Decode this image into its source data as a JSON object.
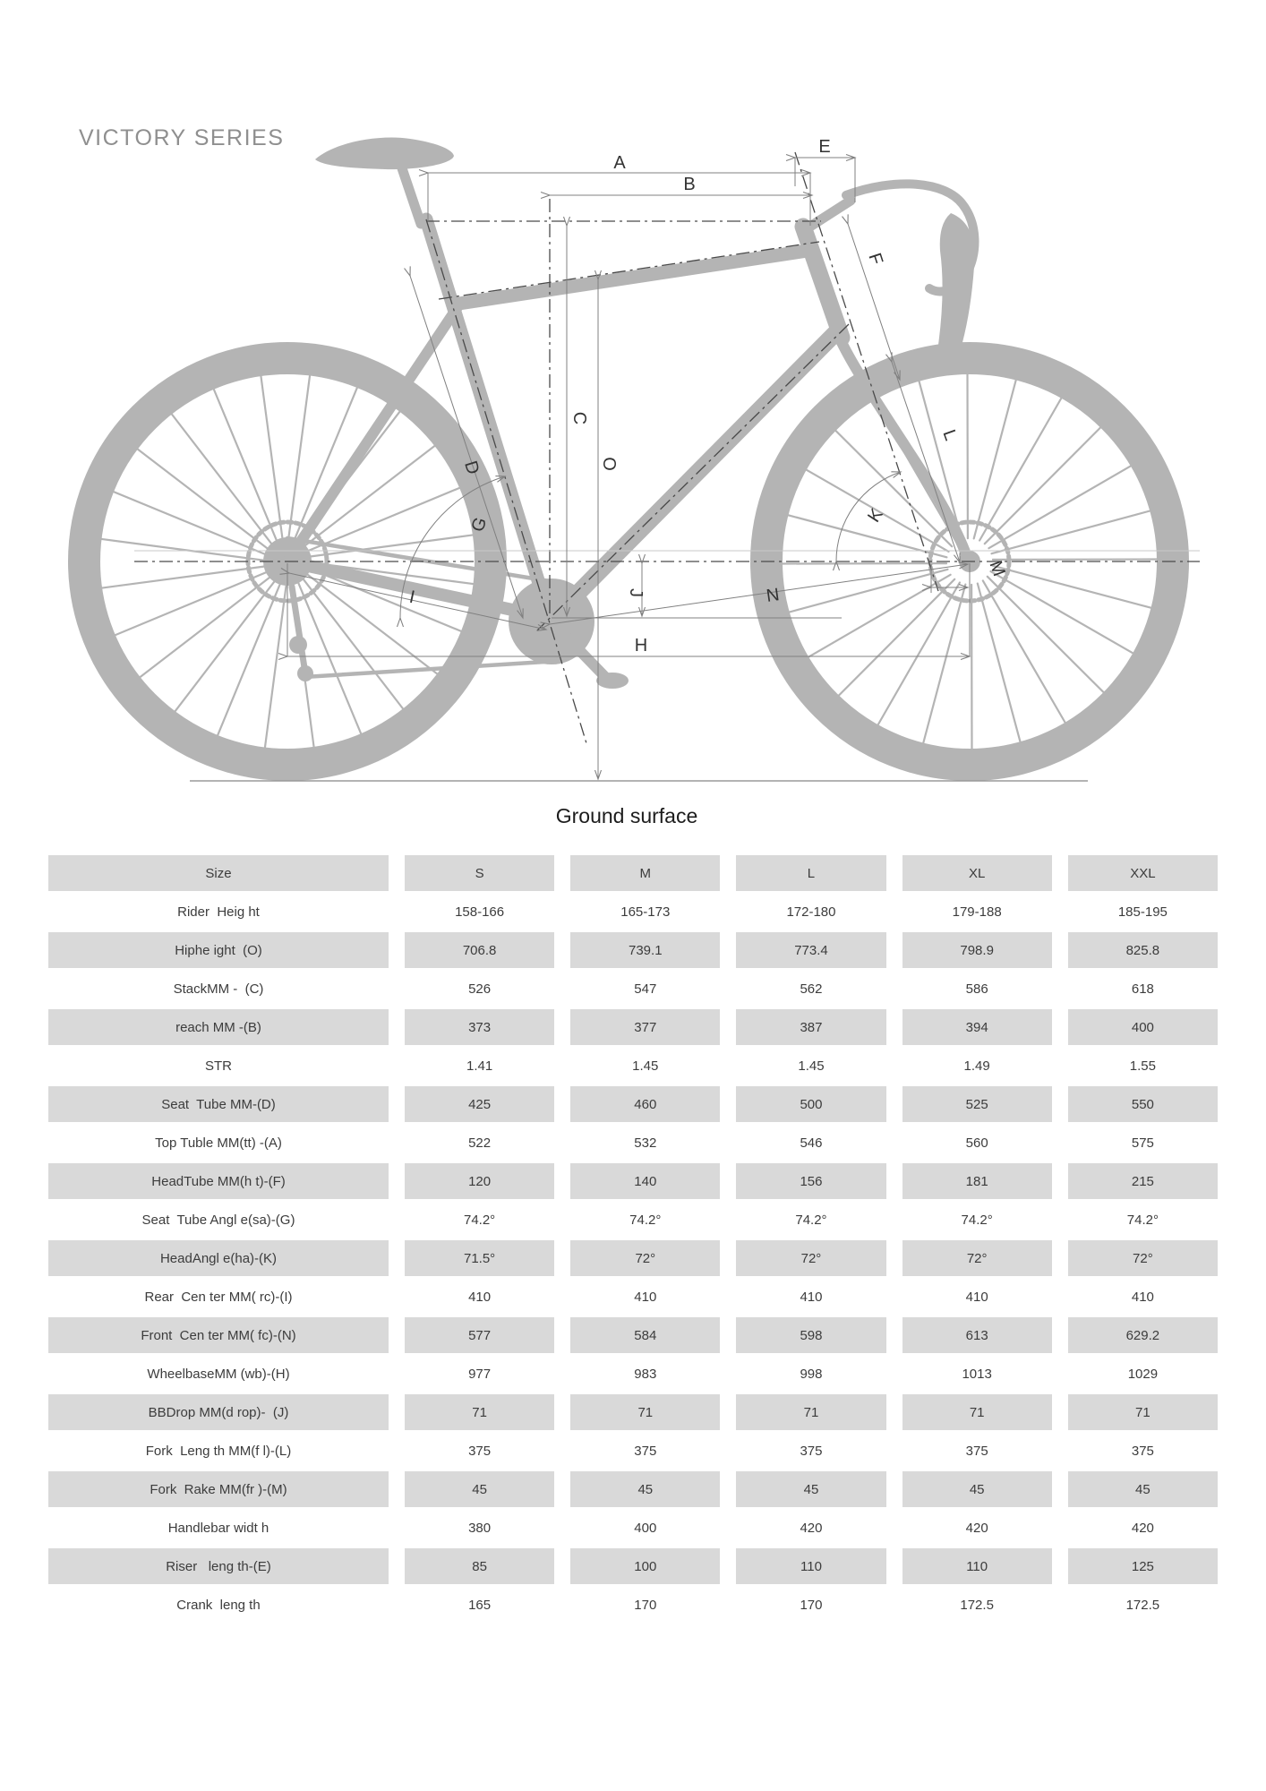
{
  "title": "VICTORY SERIES",
  "diagram": {
    "ground_label": "Ground surface",
    "letters": [
      "A",
      "B",
      "C",
      "D",
      "E",
      "F",
      "G",
      "H",
      "I",
      "J",
      "K",
      "L",
      "M",
      "N",
      "O"
    ]
  },
  "colors": {
    "bike_silhouette": "#b4b4b4",
    "table_row_gray": "#d9d9d9",
    "dimension_line": "#808080",
    "text": "#3c3c3c"
  },
  "table": {
    "columns": [
      "Size",
      "S",
      "M",
      "L",
      "XL",
      "XXL"
    ],
    "rows": [
      {
        "label": "Rider  Heig ht",
        "values": [
          "158-166",
          "165-173",
          "172-180",
          "179-188",
          "185-195"
        ]
      },
      {
        "label": "Hiphe ight  (O)",
        "values": [
          "706.8",
          "739.1",
          "773.4",
          "798.9",
          "825.8"
        ]
      },
      {
        "label": "StackMM -  (C)",
        "values": [
          "526",
          "547",
          "562",
          "586",
          "618"
        ]
      },
      {
        "label": "reach MM -(B)",
        "values": [
          "373",
          "377",
          "387",
          "394",
          "400"
        ]
      },
      {
        "label": "STR",
        "values": [
          "1.41",
          "1.45",
          "1.45",
          "1.49",
          "1.55"
        ]
      },
      {
        "label": "Seat  Tube MM-(D)",
        "values": [
          "425",
          "460",
          "500",
          "525",
          "550"
        ]
      },
      {
        "label": "Top Tuble MM(tt) -(A)",
        "values": [
          "522",
          "532",
          "546",
          "560",
          "575"
        ]
      },
      {
        "label": "HeadTube MM(h t)-(F)",
        "values": [
          "120",
          "140",
          "156",
          "181",
          "215"
        ]
      },
      {
        "label": "Seat  Tube Angl e(sa)-(G)",
        "values": [
          "74.2°",
          "74.2°",
          "74.2°",
          "74.2°",
          "74.2°"
        ]
      },
      {
        "label": "HeadAngl e(ha)-(K)",
        "values": [
          "71.5°",
          "72°",
          "72°",
          "72°",
          "72°"
        ]
      },
      {
        "label": "Rear  Cen ter MM( rc)-(I)",
        "values": [
          "410",
          "410",
          "410",
          "410",
          "410"
        ]
      },
      {
        "label": "Front  Cen ter MM( fc)-(N)",
        "values": [
          "577",
          "584",
          "598",
          "613",
          "629.2"
        ]
      },
      {
        "label": "WheelbaseMM (wb)-(H)",
        "values": [
          "977",
          "983",
          "998",
          "1013",
          "1029"
        ]
      },
      {
        "label": "BBDrop MM(d rop)-  (J)",
        "values": [
          "71",
          "71",
          "71",
          "71",
          "71"
        ]
      },
      {
        "label": "Fork  Leng th MM(f l)-(L)",
        "values": [
          "375",
          "375",
          "375",
          "375",
          "375"
        ]
      },
      {
        "label": "Fork  Rake MM(fr )-(M)",
        "values": [
          "45",
          "45",
          "45",
          "45",
          "45"
        ]
      },
      {
        "label": "Handlebar widt h",
        "values": [
          "380",
          "400",
          "420",
          "420",
          "420"
        ]
      },
      {
        "label": "Riser   leng th-(E)",
        "values": [
          "85",
          "100",
          "110",
          "110",
          "125"
        ]
      },
      {
        "label": "Crank  leng th",
        "values": [
          "165",
          "170",
          "170",
          "172.5",
          "172.5"
        ]
      }
    ]
  }
}
